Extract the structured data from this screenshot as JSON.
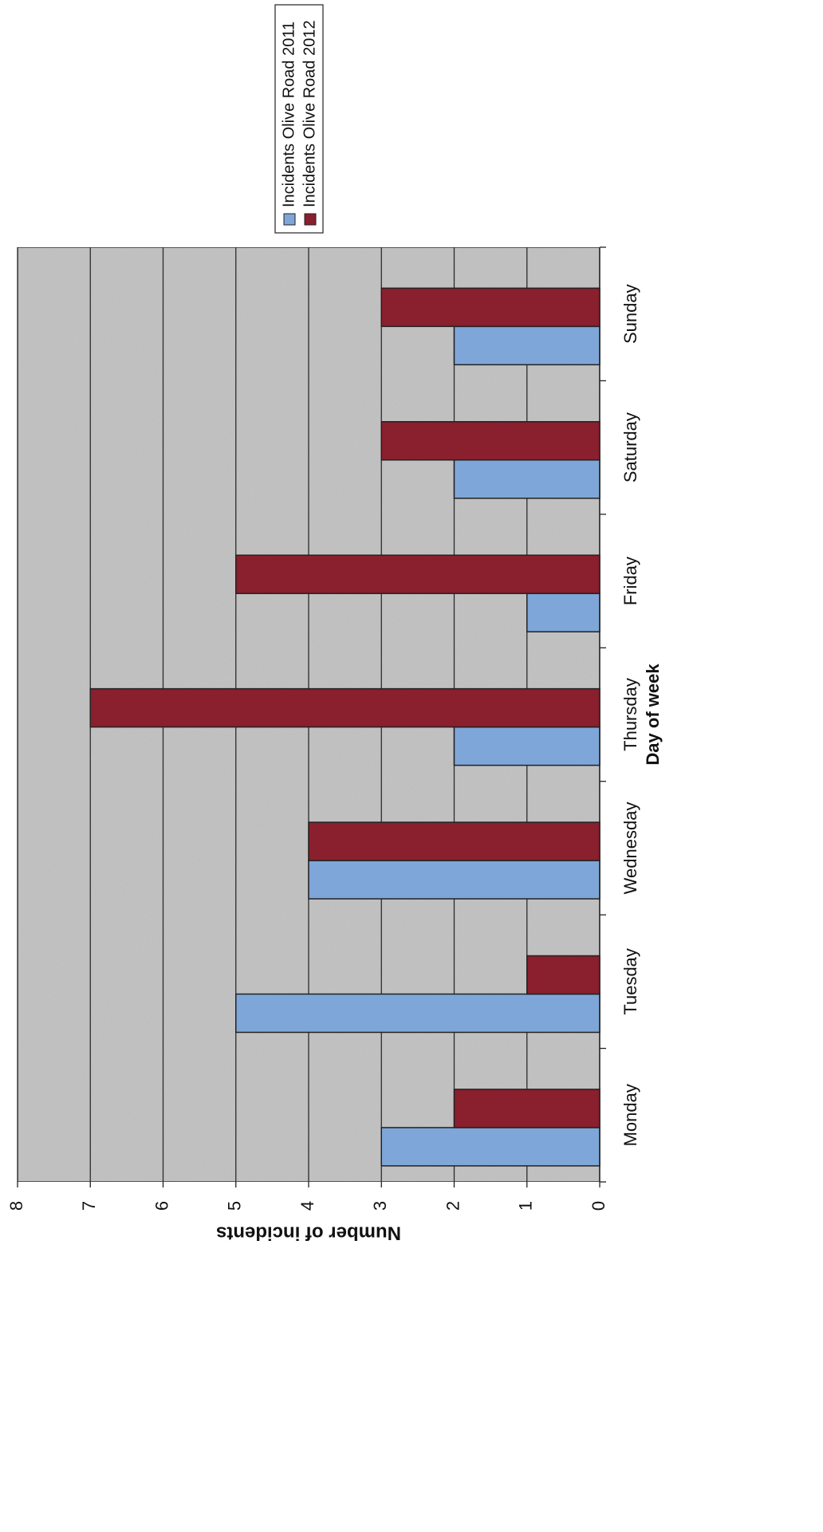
{
  "chart_data": {
    "type": "bar",
    "orientation": "rotated-90",
    "title": "",
    "xlabel": "Day of week",
    "ylabel": "Number of incidents",
    "categories": [
      "Monday",
      "Tuesday",
      "Wednesday",
      "Thursday",
      "Friday",
      "Saturday",
      "Sunday"
    ],
    "ylim": [
      0,
      8
    ],
    "yticks": [
      0,
      1,
      2,
      3,
      4,
      5,
      6,
      7,
      8
    ],
    "grid": true,
    "legend_position": "right",
    "series": [
      {
        "name": "Incidents Olive Road 2011",
        "color": "#7FA6D8",
        "values": [
          3,
          5,
          4,
          2,
          1,
          2,
          2
        ]
      },
      {
        "name": "Incidents Olive Road 2012",
        "color": "#8A1F2E",
        "values": [
          2,
          1,
          4,
          7,
          5,
          3,
          3
        ]
      }
    ],
    "plot_background": "#c4c4c4"
  }
}
